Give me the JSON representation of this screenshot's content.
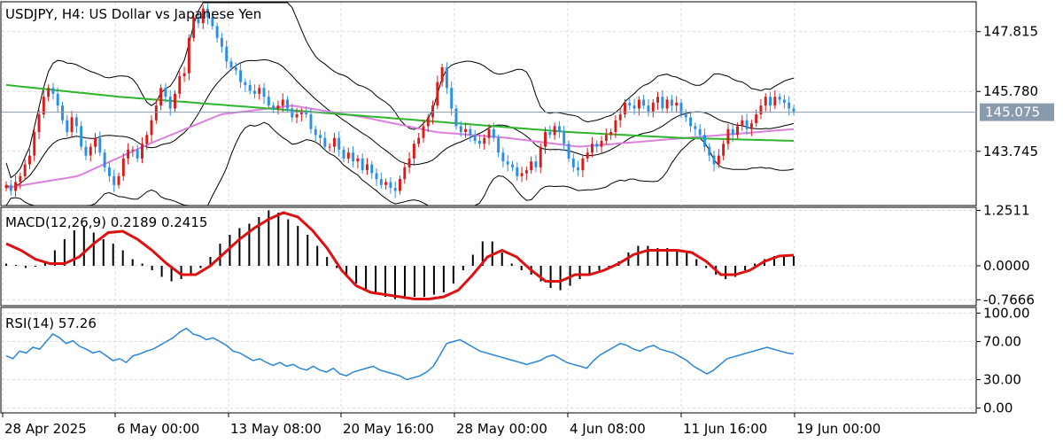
{
  "chart_data": [
    {
      "type": "candlestick",
      "panel": "price",
      "title": "USDJPY, H4:  US Dollar vs Japanese Yen",
      "ylim": [
        141.9,
        148.8
      ],
      "y_ticks": [
        {
          "value": 147.815,
          "label": "147.815"
        },
        {
          "value": 145.78,
          "label": "145.780"
        },
        {
          "value": 143.745,
          "label": "143.745"
        }
      ],
      "current_price": {
        "value": 145.075,
        "label": "145.075"
      },
      "grid": true,
      "colors": {
        "up": "#d81b1b",
        "down": "#2b8fe6",
        "ma_slow": "#2db52d",
        "ma_fast": "#dd80dd",
        "bands": "#000000",
        "current_box": "#8a9bb0"
      },
      "series": [
        {
          "kind": "close",
          "values": [
            142.6,
            142.4,
            142.7,
            142.9,
            143.3,
            143.6,
            144.4,
            145.0,
            145.6,
            145.9,
            145.7,
            145.3,
            144.8,
            144.4,
            144.9,
            144.6,
            143.9,
            143.6,
            143.9,
            144.2,
            143.7,
            143.2,
            142.9,
            142.6,
            142.9,
            143.5,
            143.8,
            143.8,
            143.5,
            144.0,
            144.3,
            144.8,
            145.3,
            145.9,
            145.6,
            145.2,
            145.7,
            146.3,
            146.4,
            147.6,
            148.3,
            148.1,
            148.6,
            148.3,
            148.0,
            147.6,
            147.3,
            146.8,
            146.6,
            146.5,
            146.1,
            146.0,
            145.8,
            145.7,
            145.9,
            145.6,
            145.3,
            145.2,
            145.3,
            145.5,
            145.2,
            144.9,
            145.0,
            145.1,
            145.0,
            144.5,
            144.3,
            144.2,
            143.9,
            143.9,
            144.2,
            143.8,
            143.5,
            143.7,
            143.4,
            143.5,
            143.1,
            143.3,
            143.0,
            142.8,
            142.6,
            142.7,
            142.5,
            142.4,
            142.8,
            143.2,
            143.5,
            144.0,
            144.2,
            144.6,
            144.9,
            145.3,
            146.1,
            146.6,
            145.9,
            145.2,
            144.6,
            144.4,
            144.5,
            144.3,
            144.1,
            144.0,
            144.2,
            144.5,
            144.2,
            143.7,
            143.4,
            143.3,
            143.2,
            142.9,
            143.0,
            143.1,
            143.4,
            143.2,
            143.9,
            144.4,
            144.3,
            144.6,
            144.4,
            144.0,
            143.5,
            143.2,
            143.1,
            143.5,
            143.7,
            144.0,
            143.9,
            144.1,
            144.3,
            144.4,
            144.8,
            145.0,
            145.4,
            145.3,
            145.2,
            145.5,
            145.3,
            145.1,
            145.4,
            145.6,
            145.2,
            145.5,
            145.3,
            145.4,
            145.0,
            144.9,
            144.6,
            144.5,
            144.3,
            143.9,
            143.6,
            143.3,
            143.6,
            144.0,
            144.5,
            144.3,
            144.6,
            144.8,
            144.5,
            144.7,
            145.0,
            145.3,
            145.6,
            145.3,
            145.6,
            145.5,
            145.4,
            145.2,
            145.1
          ]
        },
        {
          "kind": "ma_slow",
          "values": [
            146.0,
            145.6,
            145.3,
            145.0,
            144.7,
            144.4,
            144.2,
            144.1
          ]
        },
        {
          "kind": "ma_fast",
          "values": [
            142.5,
            142.9,
            144.0,
            145.0,
            145.3,
            144.9,
            144.4,
            144.2,
            143.9,
            144.1,
            144.3,
            144.5
          ]
        }
      ],
      "x_tick_labels": [
        "28 Apr 2025",
        "6 May 00:00",
        "13 May 08:00",
        "20 May 16:00",
        "28 May 00:00",
        "4 Jun 08:00",
        "11 Jun 16:00",
        "19 Jun 00:00"
      ]
    },
    {
      "type": "bar",
      "panel": "macd",
      "title": "MACD(12,26,9) 0.2189 0.2415",
      "ylim": [
        -0.9,
        1.3
      ],
      "y_ticks": [
        {
          "value": 1.2511,
          "label": "1.2511"
        },
        {
          "value": 0.0,
          "label": "0.0000"
        },
        {
          "value": -0.7666,
          "label": "-0.7666"
        }
      ],
      "grid": true,
      "colors": {
        "histogram": "#000000",
        "signal": "#dd1111"
      },
      "series": [
        {
          "name": "histogram",
          "values": [
            0.05,
            0.02,
            -0.05,
            -0.02,
            0.1,
            0.35,
            0.6,
            0.8,
            0.9,
            0.75,
            0.6,
            0.5,
            0.35,
            0.15,
            0.05,
            -0.1,
            -0.25,
            -0.35,
            -0.3,
            -0.2,
            -0.05,
            0.2,
            0.5,
            0.7,
            0.85,
            0.95,
            1.1,
            1.25,
            1.2,
            1.05,
            0.9,
            0.7,
            0.45,
            0.2,
            -0.05,
            -0.25,
            -0.4,
            -0.55,
            -0.65,
            -0.7,
            -0.75,
            -0.75,
            -0.7,
            -0.7,
            -0.65,
            -0.6,
            -0.4,
            -0.1,
            0.25,
            0.55,
            0.55,
            0.3,
            0.05,
            -0.1,
            -0.2,
            -0.35,
            -0.5,
            -0.55,
            -0.45,
            -0.3,
            -0.2,
            -0.1,
            -0.05,
            0.1,
            0.3,
            0.45,
            0.45,
            0.4,
            0.4,
            0.35,
            0.3,
            0.15,
            -0.05,
            -0.2,
            -0.3,
            -0.25,
            -0.1,
            0.05,
            0.15,
            0.22,
            0.24,
            0.22
          ]
        },
        {
          "name": "signal",
          "values": [
            0.5,
            0.35,
            0.15,
            0.05,
            0.05,
            0.2,
            0.5,
            0.75,
            0.78,
            0.6,
            0.35,
            0.05,
            -0.2,
            -0.2,
            0.0,
            0.3,
            0.6,
            0.85,
            1.05,
            1.2,
            1.1,
            0.8,
            0.4,
            -0.1,
            -0.45,
            -0.6,
            -0.65,
            -0.7,
            -0.75,
            -0.75,
            -0.7,
            -0.55,
            -0.2,
            0.2,
            0.35,
            0.2,
            -0.1,
            -0.35,
            -0.35,
            -0.2,
            -0.2,
            -0.1,
            0.05,
            0.25,
            0.35,
            0.35,
            0.35,
            0.3,
            0.1,
            -0.2,
            -0.2,
            -0.1,
            0.1,
            0.22,
            0.24
          ]
        }
      ]
    },
    {
      "type": "line",
      "panel": "rsi",
      "title": "RSI(14) 57.26",
      "ylim": [
        -5,
        105
      ],
      "y_ticks": [
        {
          "value": 100,
          "label": "100.00"
        },
        {
          "value": 70,
          "label": "70.00"
        },
        {
          "value": 30,
          "label": "30.00"
        },
        {
          "value": 0,
          "label": "0.00"
        }
      ],
      "grid": true,
      "colors": {
        "line": "#2a85d6"
      },
      "series": [
        {
          "name": "RSI",
          "values": [
            55,
            52,
            60,
            58,
            64,
            62,
            70,
            78,
            74,
            68,
            71,
            65,
            62,
            58,
            60,
            55,
            50,
            52,
            48,
            55,
            57,
            60,
            62,
            66,
            70,
            74,
            80,
            84,
            78,
            76,
            72,
            74,
            70,
            66,
            60,
            58,
            54,
            50,
            52,
            48,
            45,
            48,
            44,
            46,
            42,
            40,
            44,
            40,
            38,
            42,
            36,
            34,
            38,
            40,
            42,
            44,
            40,
            38,
            36,
            34,
            30,
            32,
            34,
            38,
            44,
            56,
            68,
            70,
            72,
            68,
            64,
            60,
            58,
            56,
            54,
            52,
            50,
            48,
            46,
            48,
            50,
            54,
            56,
            52,
            48,
            46,
            44,
            42,
            50,
            56,
            60,
            64,
            68,
            66,
            62,
            60,
            64,
            66,
            62,
            60,
            58,
            54,
            50,
            44,
            40,
            36,
            40,
            46,
            52,
            54,
            56,
            58,
            60,
            62,
            64,
            62,
            60,
            58,
            57
          ]
        }
      ]
    }
  ]
}
